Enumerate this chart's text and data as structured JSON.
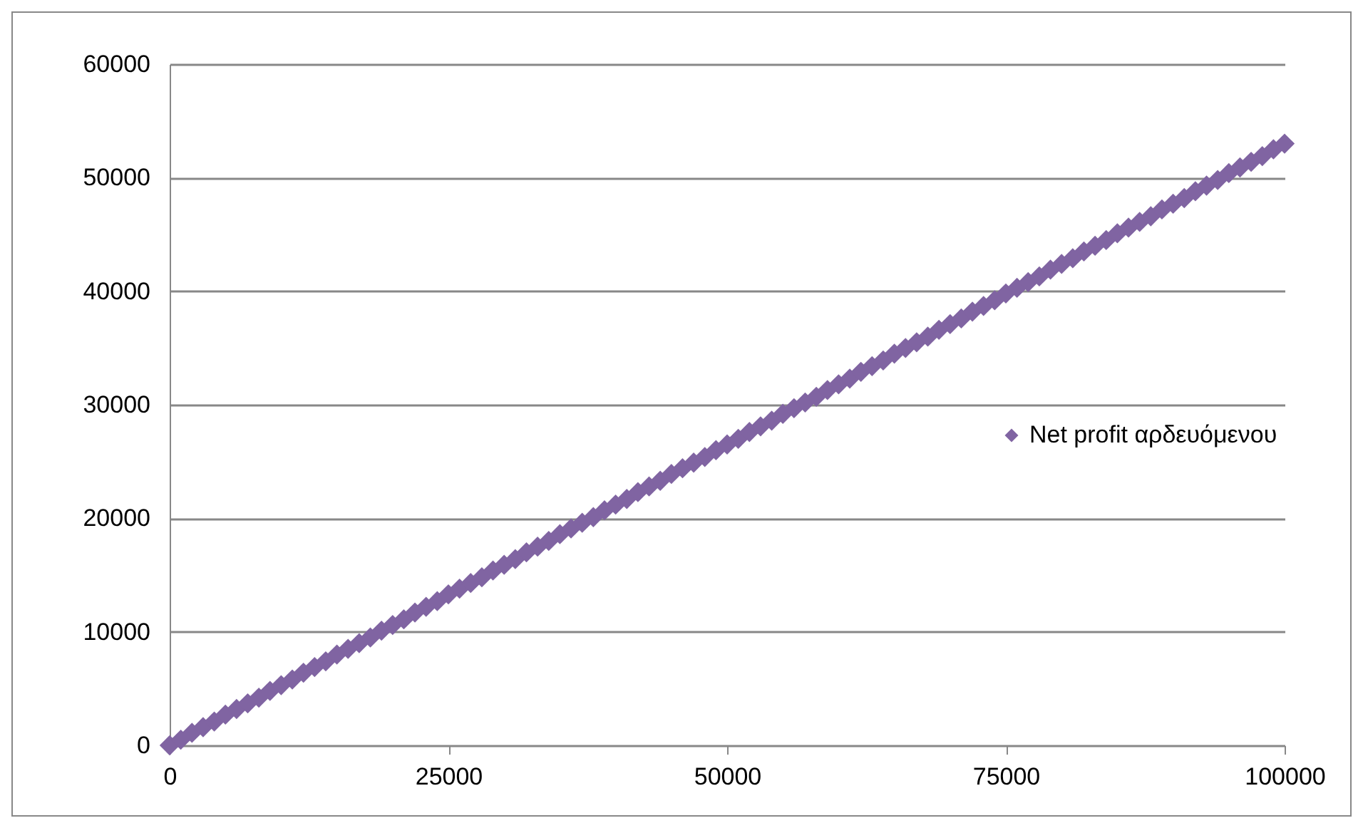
{
  "chart_data": {
    "type": "scatter",
    "x": [
      0,
      1000,
      2000,
      3000,
      4000,
      5000,
      6000,
      7000,
      8000,
      9000,
      10000,
      11000,
      12000,
      13000,
      14000,
      15000,
      16000,
      17000,
      18000,
      19000,
      20000,
      21000,
      22000,
      23000,
      24000,
      25000,
      26000,
      27000,
      28000,
      29000,
      30000,
      31000,
      32000,
      33000,
      34000,
      35000,
      36000,
      37000,
      38000,
      39000,
      40000,
      41000,
      42000,
      43000,
      44000,
      45000,
      46000,
      47000,
      48000,
      49000,
      50000,
      51000,
      52000,
      53000,
      54000,
      55000,
      56000,
      57000,
      58000,
      59000,
      60000,
      61000,
      62000,
      63000,
      64000,
      65000,
      66000,
      67000,
      68000,
      69000,
      70000,
      71000,
      72000,
      73000,
      74000,
      75000,
      76000,
      77000,
      78000,
      79000,
      80000,
      81000,
      82000,
      83000,
      84000,
      85000,
      86000,
      87000,
      88000,
      89000,
      90000,
      91000,
      92000,
      93000,
      94000,
      95000,
      96000,
      97000,
      98000,
      99000,
      100000
    ],
    "series": [
      {
        "name": "Net profit αρδευόμενου",
        "color": "#8064a2",
        "values": [
          0,
          500,
          1100,
          1600,
          2100,
          2700,
          3200,
          3700,
          4200,
          4800,
          5300,
          5800,
          6400,
          6900,
          7400,
          8000,
          8500,
          9000,
          9500,
          10100,
          10600,
          11100,
          11700,
          12200,
          12700,
          13300,
          13800,
          14300,
          14800,
          15400,
          15900,
          16400,
          17000,
          17500,
          18000,
          18600,
          19100,
          19600,
          20100,
          20700,
          21200,
          21700,
          22300,
          22800,
          23300,
          23900,
          24400,
          24900,
          25400,
          26000,
          26500,
          27000,
          27600,
          28100,
          28600,
          29200,
          29700,
          30200,
          30700,
          31300,
          31800,
          32300,
          32900,
          33400,
          33900,
          34500,
          35000,
          35500,
          36000,
          36600,
          37100,
          37600,
          38200,
          38700,
          39200,
          39800,
          40300,
          40800,
          41300,
          41900,
          42400,
          42900,
          43500,
          44000,
          44500,
          45100,
          45600,
          46100,
          46600,
          47200,
          47700,
          48200,
          48800,
          49300,
          49800,
          50400,
          50900,
          51400,
          51900,
          52500,
          53000
        ]
      }
    ],
    "xlim": [
      0,
      100000
    ],
    "xticks": [
      0,
      25000,
      50000,
      75000,
      100000
    ],
    "ylim": [
      0,
      60000
    ],
    "yticks": [
      0,
      10000,
      20000,
      30000,
      40000,
      50000,
      60000
    ],
    "grid": "y",
    "legend": "right",
    "marker": "diamond"
  }
}
